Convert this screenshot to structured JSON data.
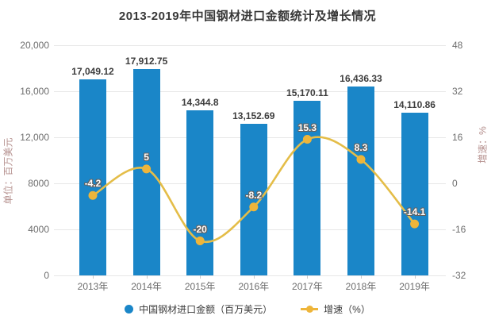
{
  "title": "2013-2019年中国钢材进口金额统计及增长情况",
  "colors": {
    "bar": "#1a86c8",
    "line": "#e4bd48",
    "marker": "#eeb53a",
    "grid": "#e7e7e7",
    "axis_text": "#6d6d6d",
    "axis_title": "#b5908e",
    "bar_label": "#3d3d3d",
    "title_text": "#383838"
  },
  "chart_data": {
    "type": "combo",
    "title": "2013-2019年中国钢材进口金额统计及增长情况",
    "categories": [
      "2013年",
      "2014年",
      "2015年",
      "2016年",
      "2017年",
      "2018年",
      "2019年"
    ],
    "series": [
      {
        "name": "中国钢材进口金额（百万美元）",
        "type": "bar",
        "y_axis": "left",
        "color": "#1a86c8",
        "values": [
          17049.12,
          17912.75,
          14344.8,
          13152.69,
          15170.11,
          16436.33,
          14110.86
        ],
        "data_labels": [
          "17,049.12",
          "17,912.75",
          "14,344.8",
          "13,152.69",
          "15,170.11",
          "16,436.33",
          "14,110.86"
        ]
      },
      {
        "name": "增速（%）",
        "type": "line",
        "y_axis": "right",
        "color": "#e4bd48",
        "marker_color": "#eeb53a",
        "values": [
          -4.2,
          5,
          -20,
          -8.2,
          15.3,
          8.3,
          -14.1
        ],
        "data_labels": [
          "-4.2",
          "5",
          "-20",
          "-8.2",
          "15.3",
          "8.3",
          "-14.1"
        ]
      }
    ],
    "left_axis": {
      "label": "单位：百万美元",
      "range": [
        0,
        20000
      ],
      "tick_values": [
        20000,
        16000,
        12000,
        8000,
        4000,
        0
      ],
      "tick_labels": [
        "20,000",
        "16,000",
        "12,000",
        "8000",
        "4000",
        "0"
      ]
    },
    "right_axis": {
      "label": "增速：%",
      "range": [
        -32,
        48
      ],
      "tick_values": [
        48,
        32,
        16,
        0,
        -16,
        -32
      ],
      "tick_labels": [
        "48",
        "32",
        "16",
        "0",
        "-16",
        "-32"
      ]
    },
    "grid": true,
    "legend_position": "bottom",
    "legend": [
      {
        "label": "中国钢材进口金额（百万美元）",
        "marker": "circle",
        "color": "#1a86c8"
      },
      {
        "label": "增速（%）",
        "marker": "line-dot",
        "color": "#eeb53a"
      }
    ]
  }
}
